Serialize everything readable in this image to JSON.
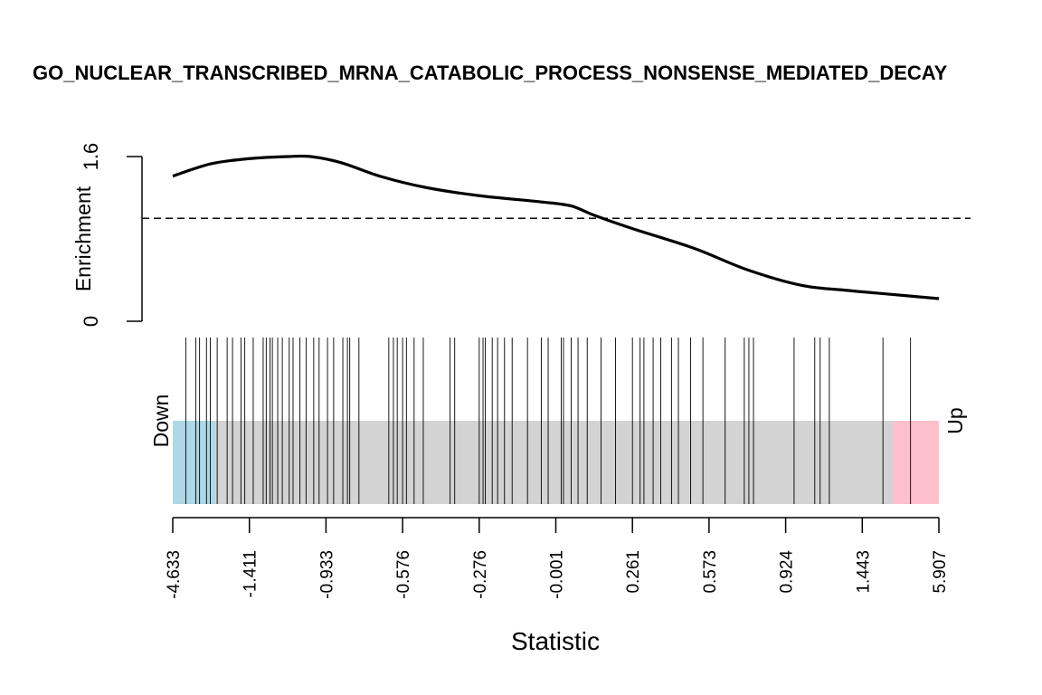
{
  "chart_data": {
    "type": "barcode",
    "title": "GO_NUCLEAR_TRANSCRIBED_MRNA_CATABOLIC_PROCESS_NONSENSE_MEDIATED_DECAY",
    "xlabel": "Statistic",
    "ylabel": "Enrichment",
    "y_ticks": [
      "0",
      "1.6"
    ],
    "ylim": [
      0,
      1.6
    ],
    "reference_line": 1.0,
    "x_ticks": [
      "-4.633",
      "-1.411",
      "-0.933",
      "-0.576",
      "-0.276",
      "-0.001",
      "0.261",
      "0.573",
      "0.924",
      "1.443",
      "5.907"
    ],
    "x_range_rank": [
      0,
      1
    ],
    "down_label": "Down",
    "up_label": "Up",
    "down_region": [
      0,
      0.055
    ],
    "up_region": [
      0.94,
      1.0
    ],
    "colors": {
      "down": "#add8e6",
      "up": "#ffc0cb",
      "middle": "#d3d3d3",
      "line": "#000000"
    },
    "enrichment_curve": {
      "x": [
        0,
        0.05,
        0.1,
        0.15,
        0.18,
        0.22,
        0.27,
        0.33,
        0.4,
        0.48,
        0.52,
        0.55,
        0.6,
        0.68,
        0.75,
        0.82,
        0.88,
        0.94,
        1.0
      ],
      "y": [
        1.41,
        1.53,
        1.58,
        1.6,
        1.6,
        1.54,
        1.41,
        1.3,
        1.22,
        1.16,
        1.12,
        1.03,
        0.9,
        0.71,
        0.5,
        0.35,
        0.3,
        0.26,
        0.22
      ]
    },
    "gene_positions": [
      0.017,
      0.03,
      0.035,
      0.044,
      0.049,
      0.058,
      0.071,
      0.078,
      0.089,
      0.094,
      0.105,
      0.118,
      0.122,
      0.127,
      0.13,
      0.137,
      0.143,
      0.152,
      0.157,
      0.166,
      0.174,
      0.184,
      0.191,
      0.202,
      0.21,
      0.222,
      0.228,
      0.231,
      0.243,
      0.282,
      0.288,
      0.293,
      0.3,
      0.305,
      0.315,
      0.327,
      0.362,
      0.368,
      0.4,
      0.405,
      0.408,
      0.417,
      0.424,
      0.433,
      0.443,
      0.463,
      0.481,
      0.49,
      0.507,
      0.51,
      0.52,
      0.529,
      0.541,
      0.559,
      0.578,
      0.6,
      0.61,
      0.615,
      0.627,
      0.637,
      0.651,
      0.66,
      0.676,
      0.692,
      0.721,
      0.746,
      0.752,
      0.758,
      0.811,
      0.838,
      0.845,
      0.857,
      0.927,
      0.963
    ]
  }
}
